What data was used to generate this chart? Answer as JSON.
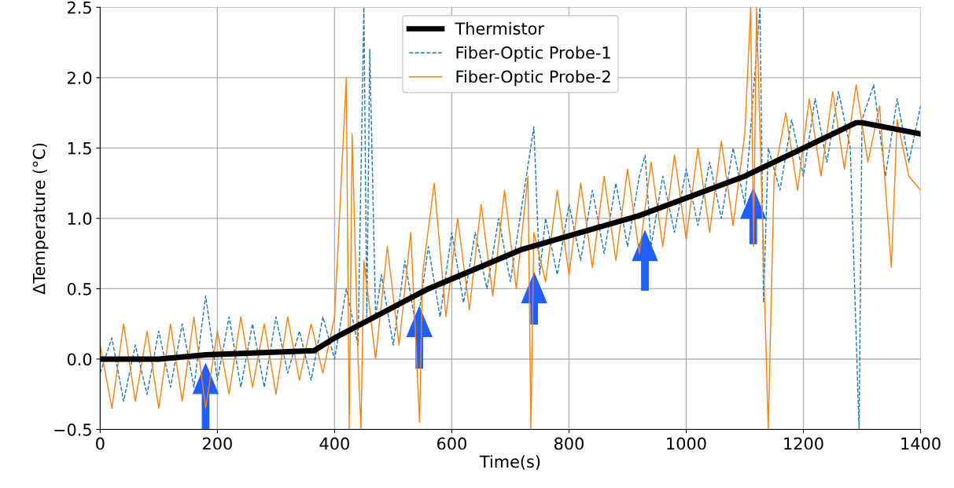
{
  "chart_data": {
    "type": "line",
    "xlabel": "Time(s)",
    "ylabel": "ΔTemperature (°C)",
    "xlim": [
      0,
      1400
    ],
    "ylim": [
      -0.5,
      2.5
    ],
    "xticks": [
      0,
      200,
      400,
      600,
      800,
      1000,
      1200,
      1400
    ],
    "yticks": [
      {
        "value": -0.5,
        "label": "−0.5"
      },
      {
        "value": 0,
        "label": "0.0"
      },
      0.5,
      {
        "value": 1,
        "label": "1.0"
      },
      1.5,
      {
        "value": 2,
        "label": "2.0"
      },
      2.5
    ],
    "grid": true,
    "legend": "top",
    "series": [
      {
        "name": "Thermistor",
        "color": "#000000",
        "line_style": "solid",
        "x": [
          0,
          100,
          180,
          365,
          400,
          560,
          720,
          920,
          1100,
          1290,
          1300,
          1400
        ],
        "values": [
          0,
          0,
          0.03,
          0.06,
          0.15,
          0.5,
          0.78,
          1.02,
          1.3,
          1.68,
          1.68,
          1.6
        ]
      },
      {
        "name": "Fiber-Optic Probe-1",
        "color": "#1f77b4",
        "line_style": "dashed",
        "x": [
          0,
          20,
          40,
          60,
          80,
          100,
          120,
          140,
          160,
          180,
          200,
          220,
          240,
          260,
          280,
          300,
          320,
          340,
          360,
          380,
          400,
          420,
          440,
          450,
          455,
          460,
          470,
          480,
          500,
          520,
          540,
          560,
          580,
          600,
          620,
          640,
          660,
          680,
          700,
          720,
          740,
          750,
          760,
          780,
          800,
          820,
          840,
          860,
          880,
          900,
          920,
          930,
          940,
          960,
          980,
          1000,
          1020,
          1040,
          1060,
          1080,
          1100,
          1126,
          1132,
          1140,
          1160,
          1180,
          1200,
          1220,
          1240,
          1260,
          1280,
          1295,
          1300,
          1320,
          1340,
          1360,
          1380,
          1400
        ],
        "values": [
          -0.1,
          0.15,
          -0.3,
          0.1,
          -0.25,
          0.2,
          -0.2,
          0.25,
          -0.2,
          0.45,
          -0.15,
          0.3,
          -0.2,
          0.25,
          -0.2,
          0.3,
          -0.1,
          0.2,
          -0.15,
          0.3,
          0.0,
          0.5,
          0.1,
          2.5,
          0.3,
          2.2,
          0.3,
          0.6,
          0.1,
          0.7,
          0.2,
          0.8,
          0.3,
          0.9,
          0.4,
          0.9,
          0.5,
          1.0,
          0.55,
          1.1,
          1.65,
          0.6,
          1.0,
          0.6,
          1.1,
          0.7,
          1.2,
          0.75,
          1.25,
          0.8,
          1.3,
          1.45,
          0.8,
          1.3,
          0.9,
          1.35,
          0.95,
          1.4,
          1.0,
          1.5,
          1.1,
          2.5,
          0.4,
          1.5,
          1.2,
          1.7,
          1.3,
          1.85,
          1.4,
          1.9,
          1.5,
          -0.5,
          1.7,
          1.95,
          1.3,
          1.85,
          1.4,
          1.8
        ]
      },
      {
        "name": "Fiber-Optic Probe-2",
        "color": "#ff7f0e",
        "line_style": "solid",
        "x": [
          0,
          20,
          40,
          60,
          80,
          100,
          120,
          140,
          160,
          180,
          200,
          220,
          240,
          260,
          280,
          300,
          320,
          340,
          360,
          380,
          400,
          420,
          425,
          430,
          440,
          445,
          450,
          470,
          490,
          510,
          530,
          545,
          550,
          570,
          590,
          610,
          630,
          650,
          670,
          690,
          710,
          730,
          735,
          740,
          760,
          780,
          800,
          820,
          840,
          860,
          880,
          900,
          920,
          940,
          960,
          980,
          1000,
          1020,
          1040,
          1060,
          1080,
          1100,
          1110,
          1115,
          1120,
          1130,
          1140,
          1150,
          1170,
          1190,
          1210,
          1230,
          1250,
          1270,
          1290,
          1310,
          1330,
          1350,
          1360,
          1380,
          1400
        ],
        "values": [
          0.1,
          -0.35,
          0.25,
          -0.3,
          0.2,
          -0.35,
          0.25,
          -0.3,
          0.3,
          -0.35,
          0.2,
          -0.25,
          0.3,
          -0.2,
          0.25,
          -0.25,
          0.3,
          -0.15,
          0.25,
          -0.1,
          0.3,
          2.0,
          -0.5,
          1.6,
          0.0,
          -0.5,
          0.7,
          0.0,
          0.8,
          0.1,
          0.9,
          -0.45,
          0.6,
          1.25,
          0.3,
          1.0,
          0.35,
          1.1,
          0.45,
          1.2,
          0.5,
          1.3,
          -0.5,
          0.9,
          0.55,
          1.2,
          0.6,
          1.25,
          0.65,
          1.3,
          0.7,
          1.35,
          0.75,
          1.4,
          0.8,
          1.45,
          0.85,
          1.5,
          0.9,
          1.55,
          0.95,
          1.6,
          2.5,
          0.8,
          2.5,
          1.0,
          -0.5,
          1.3,
          1.75,
          1.2,
          1.85,
          1.3,
          1.9,
          1.35,
          1.95,
          1.4,
          1.8,
          0.65,
          1.7,
          1.3,
          1.2
        ]
      }
    ]
  }
}
